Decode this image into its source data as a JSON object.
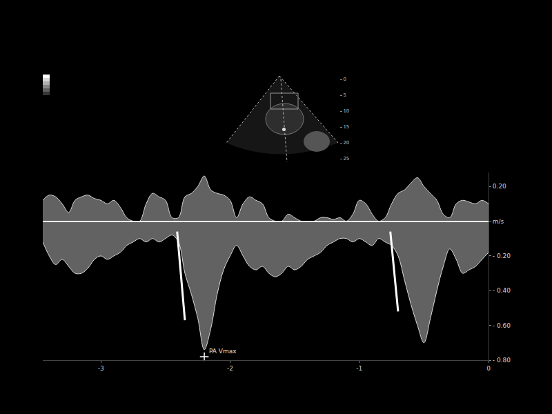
{
  "chart_data": [
    {
      "type": "line",
      "x": [
        -3.45,
        -3.4,
        -3.35,
        -3.3,
        -3.25,
        -3.2,
        -3.15,
        -3.1,
        -3.05,
        -3.0,
        -2.95,
        -2.9,
        -2.85,
        -2.8,
        -2.75,
        -2.7,
        -2.65,
        -2.6,
        -2.55,
        -2.5,
        -2.45,
        -2.4,
        -2.35,
        -2.3,
        -2.25,
        -2.2,
        -2.15,
        -2.1,
        -2.05,
        -2.0,
        -1.95,
        -1.9,
        -1.85,
        -1.8,
        -1.75,
        -1.7,
        -1.65,
        -1.6,
        -1.55,
        -1.5,
        -1.45,
        -1.4,
        -1.35,
        -1.3,
        -1.25,
        -1.2,
        -1.15,
        -1.1,
        -1.05,
        -1.0,
        -0.95,
        -0.9,
        -0.85,
        -0.8,
        -0.75,
        -0.7,
        -0.65,
        -0.6,
        -0.55,
        -0.5,
        -0.45,
        -0.4,
        -0.35,
        -0.3,
        -0.25,
        -0.2,
        -0.15,
        -0.1,
        -0.05,
        0.0
      ],
      "series": [
        {
          "type": "area",
          "color": "#d9d9d9",
          "values": [
            -0.12,
            -0.2,
            -0.25,
            -0.22,
            -0.26,
            -0.3,
            -0.3,
            -0.27,
            -0.22,
            -0.2,
            -0.22,
            -0.2,
            -0.18,
            -0.14,
            -0.12,
            -0.1,
            -0.12,
            -0.1,
            -0.12,
            -0.1,
            -0.08,
            -0.12,
            -0.3,
            -0.42,
            -0.56,
            -0.74,
            -0.62,
            -0.42,
            -0.28,
            -0.2,
            -0.14,
            -0.2,
            -0.26,
            -0.28,
            -0.26,
            -0.3,
            -0.32,
            -0.3,
            -0.26,
            -0.28,
            -0.26,
            -0.22,
            -0.2,
            -0.18,
            -0.14,
            -0.12,
            -0.1,
            -0.1,
            -0.12,
            -0.1,
            -0.12,
            -0.14,
            -0.1,
            -0.12,
            -0.14,
            -0.2,
            -0.34,
            -0.48,
            -0.6,
            -0.7,
            -0.56,
            -0.4,
            -0.26,
            -0.16,
            -0.22,
            -0.3,
            -0.28,
            -0.26,
            -0.22,
            -0.18
          ]
        },
        {
          "type": "area",
          "color": "#d9d9d9",
          "values": [
            0.12,
            0.15,
            0.14,
            0.1,
            0.05,
            0.12,
            0.14,
            0.15,
            0.13,
            0.12,
            0.1,
            0.12,
            0.08,
            0.02,
            0,
            0,
            0.1,
            0.16,
            0.14,
            0.12,
            0.02,
            0.02,
            0.14,
            0.16,
            0.2,
            0.26,
            0.18,
            0.16,
            0.15,
            0.12,
            0.02,
            0.1,
            0.14,
            0.12,
            0.1,
            0.02,
            0,
            0,
            0.04,
            0.02,
            0,
            0,
            0,
            0.02,
            0.02,
            0.01,
            0.02,
            0,
            0.04,
            0.12,
            0.1,
            0.04,
            0,
            0.02,
            0.1,
            0.16,
            0.18,
            0.22,
            0.25,
            0.2,
            0.16,
            0.12,
            0.04,
            0.02,
            0.1,
            0.12,
            0.11,
            0.1,
            0.12,
            0.1
          ]
        },
        {
          "type": "line",
          "color": "#ffffff",
          "x": [
            -2.41,
            -2.35,
            -1.5,
            -0.76,
            -0.7
          ],
          "values": [
            -0.06,
            -0.57,
            null,
            -0.06,
            -0.52
          ]
        }
      ],
      "xlim": [
        -3.45,
        0
      ],
      "xticks": [
        -3,
        -2,
        -1,
        0
      ],
      "ylim": [
        -0.8,
        0.28
      ],
      "yticks": [
        {
          "value": 0.2,
          "label": "0.20"
        },
        {
          "value": 0,
          "label": "m/s"
        },
        {
          "value": -0.2,
          "label": "- 0.20"
        },
        {
          "value": -0.4,
          "label": "- 0.40"
        },
        {
          "value": -0.6,
          "label": "- 0.60"
        },
        {
          "value": -0.8,
          "label": "- 0.80"
        }
      ],
      "grid": false,
      "annotations": [
        {
          "text": "PA Vmax",
          "x": -2.2,
          "y": -0.78
        }
      ]
    },
    {
      "type": "sector",
      "ylim": [
        0,
        25
      ],
      "yticks": [
        0,
        5,
        10,
        15,
        20,
        25
      ]
    }
  ]
}
